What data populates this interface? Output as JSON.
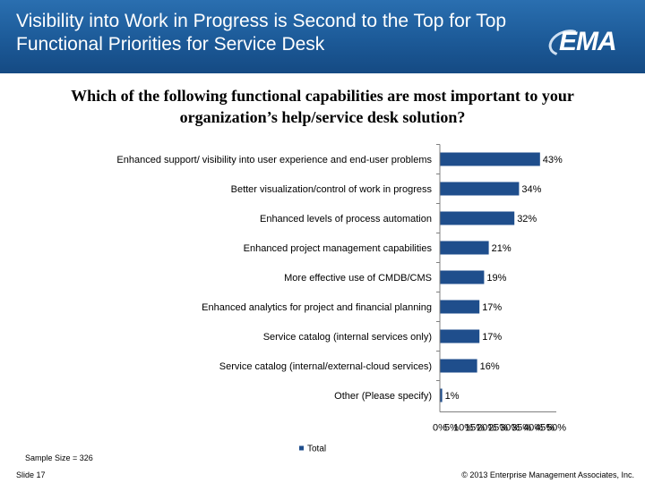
{
  "header": {
    "title": "Visibility into Work in Progress is Second to the Top for Top Functional Priorities for Service Desk",
    "logo_text": "EMA"
  },
  "question": "Which of the following functional capabilities are most important to your organization’s help/service desk solution?",
  "chart_data": {
    "type": "bar",
    "orientation": "horizontal",
    "title": "",
    "categories": [
      "Enhanced support/ visibility into user experience and end-user problems",
      "Better visualization/control of work in progress",
      "Enhanced levels of process automation",
      "Enhanced project management capabilities",
      "More effective use of CMDB/CMS",
      "Enhanced analytics for project and financial planning",
      "Service catalog (internal services only)",
      "Service catalog (internal/external-cloud services)",
      "Other (Please specify)"
    ],
    "series": [
      {
        "name": "Total",
        "values": [
          43,
          34,
          32,
          21,
          19,
          17,
          17,
          16,
          1
        ],
        "labels": [
          "43%",
          "34%",
          "32%",
          "21%",
          "19%",
          "17%",
          "17%",
          "16%",
          "1%"
        ]
      }
    ],
    "xlim": [
      0,
      50
    ],
    "x_ticks": [
      "0%",
      "5%",
      "10%",
      "15%",
      "20%",
      "25%",
      "30%",
      "35%",
      "40%",
      "45%",
      "50%"
    ],
    "legend": "bottom",
    "bar_color": "#1f4e8c"
  },
  "footer": {
    "sample_size": "Sample Size = 326",
    "slide": "Slide  17",
    "copyright": "© 2013 Enterprise Management Associates, Inc."
  }
}
